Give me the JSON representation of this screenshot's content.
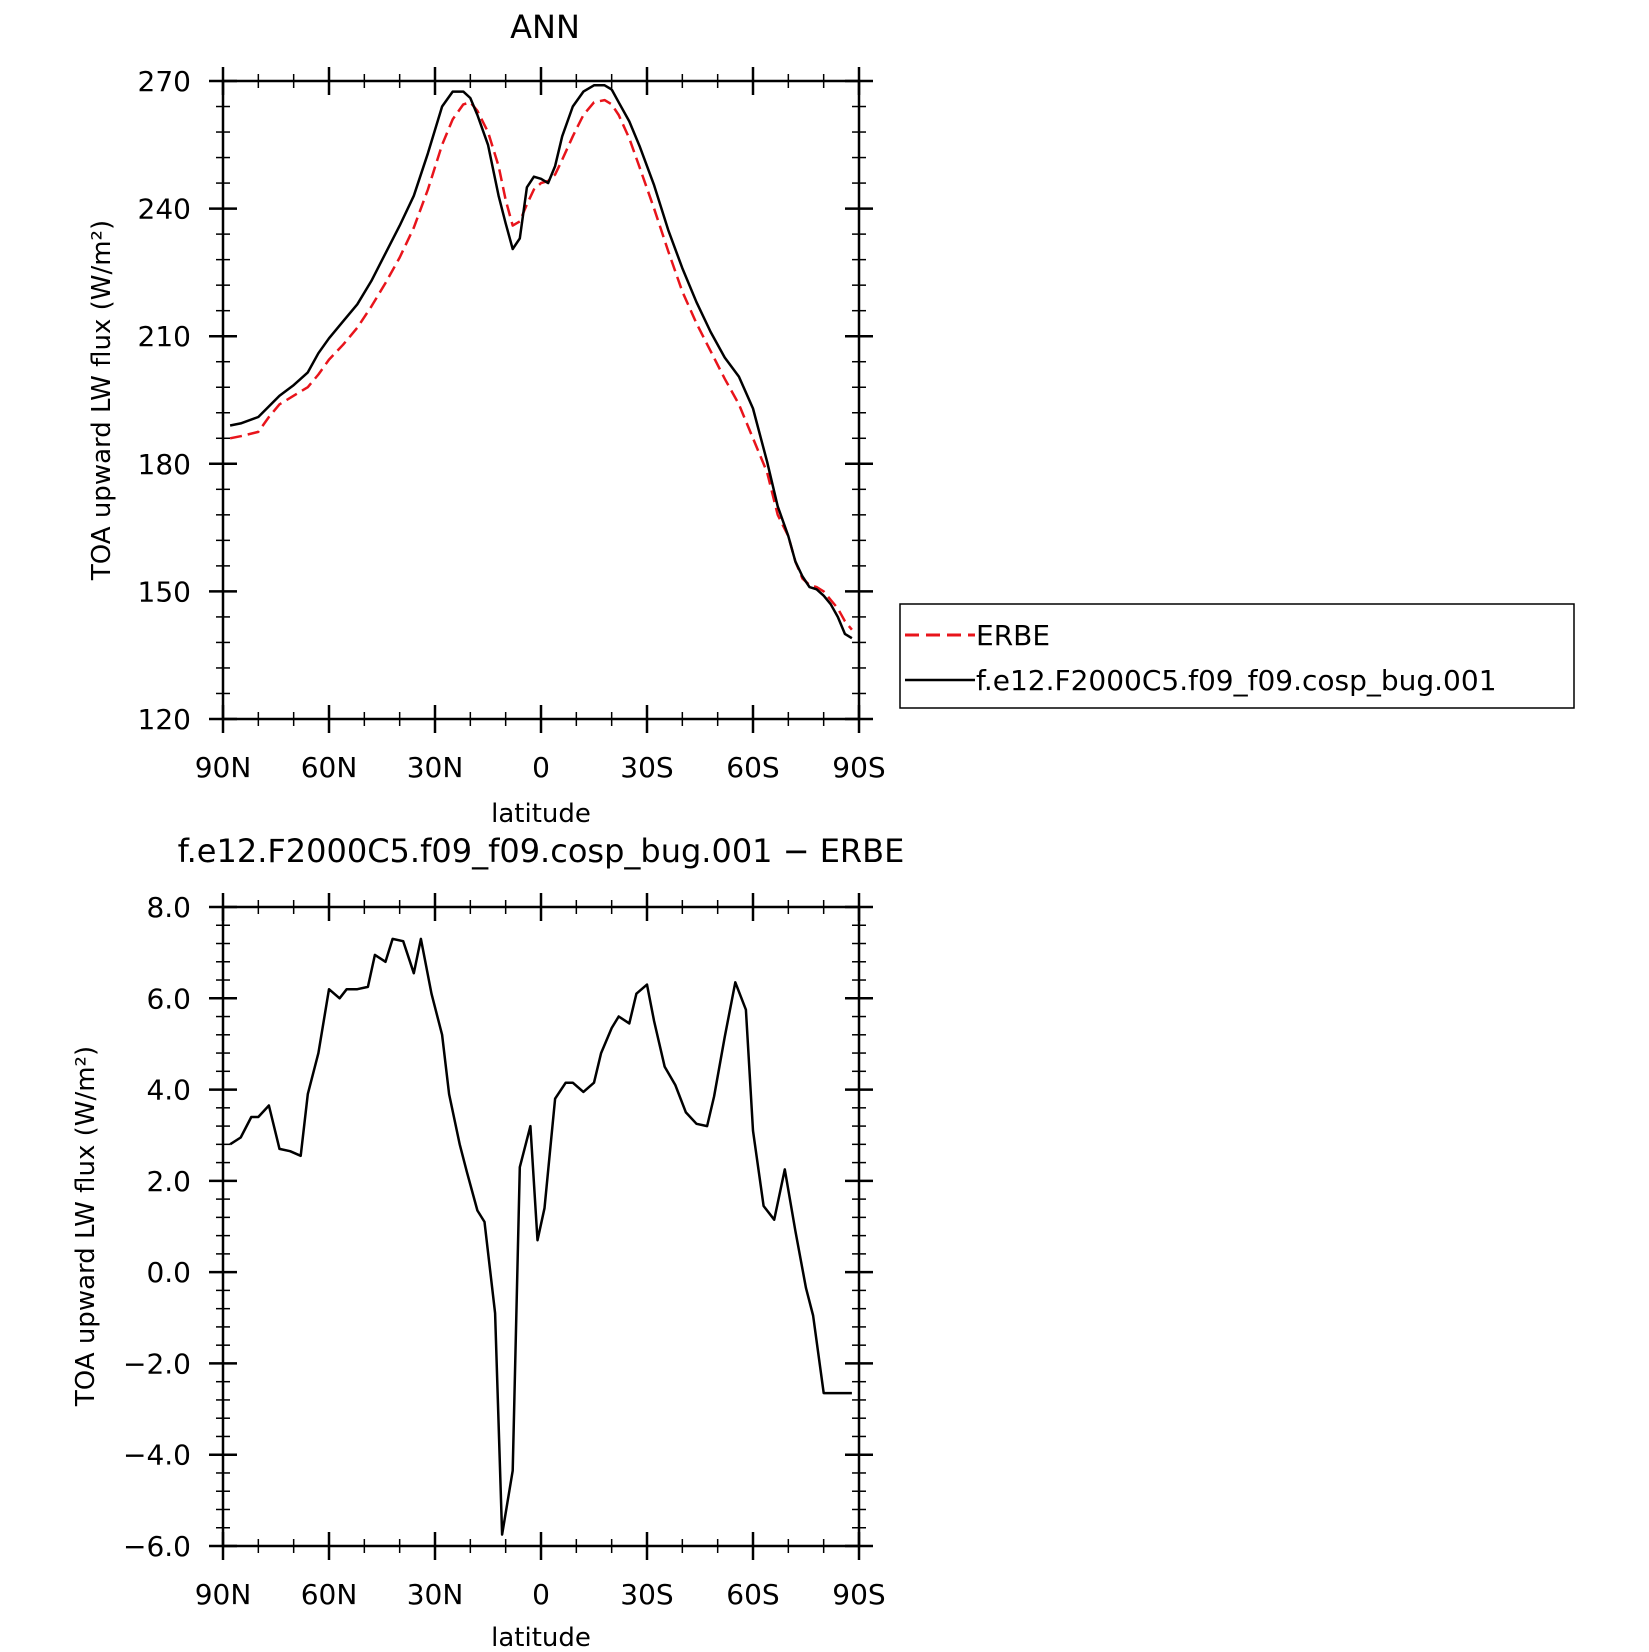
{
  "chart_data": [
    {
      "type": "line",
      "title": "ANN",
      "xlabel": "latitude",
      "ylabel": "TOA upward LW flux (W/m²)",
      "ylim": [
        120,
        270
      ],
      "xlim": [
        90,
        -90
      ],
      "y_ticks": [
        120,
        150,
        180,
        210,
        240,
        270
      ],
      "y_tick_labels": [
        "120",
        "150",
        "180",
        "210",
        "240",
        "270"
      ],
      "x_ticks": [
        90,
        60,
        30,
        0,
        -30,
        -60,
        -90
      ],
      "x_tick_labels": [
        "90N",
        "60N",
        "30N",
        "0",
        "30S",
        "60S",
        "90S"
      ],
      "grid": false,
      "legend": "right",
      "legend_entries": [
        "ERBE",
        "f.e12.F2000C5.f09_f09.cosp_bug.001"
      ],
      "series": [
        {
          "name": "ERBE",
          "color": "#e8141b",
          "dash": "dashed",
          "x": [
            88,
            85,
            80,
            77,
            74,
            70,
            66,
            63,
            60,
            56,
            52,
            48,
            44,
            40,
            36,
            32,
            28,
            25,
            22,
            20,
            18,
            15,
            12,
            10,
            8,
            6,
            4,
            2,
            0,
            -2,
            -4,
            -6,
            -9,
            -12,
            -15,
            -18,
            -20,
            -22,
            -25,
            -28,
            -32,
            -36,
            -40,
            -44,
            -48,
            -52,
            -56,
            -60,
            -64,
            -67,
            -70,
            -72,
            -74,
            -76,
            -78,
            -80,
            -82,
            -84,
            -86,
            -88
          ],
          "y": [
            186,
            186.5,
            187.5,
            191,
            194,
            196,
            198,
            201,
            204.5,
            208,
            212,
            217,
            222.5,
            228.5,
            235.5,
            244.5,
            255,
            261,
            264.5,
            265,
            263,
            258,
            250,
            242,
            236,
            237,
            241,
            244.5,
            246,
            246.5,
            248,
            251.5,
            257,
            262,
            265,
            265.5,
            264.5,
            262,
            256.5,
            249.5,
            240,
            230,
            220.5,
            213,
            206.5,
            200,
            194,
            186,
            178,
            168,
            163,
            157,
            153,
            151.5,
            151,
            150,
            148,
            146,
            143,
            141
          ]
        },
        {
          "name": "f.e12.F2000C5.f09_f09.cosp_bug.001",
          "color": "#000000",
          "dash": "solid",
          "x": [
            88,
            85,
            80,
            77,
            74,
            70,
            66,
            63,
            60,
            56,
            52,
            48,
            44,
            40,
            36,
            32,
            28,
            25,
            22,
            20,
            18,
            15,
            12,
            10,
            8,
            6,
            4,
            2,
            0,
            -2,
            -4,
            -6,
            -9,
            -12,
            -15,
            -18,
            -20,
            -22,
            -25,
            -28,
            -32,
            -36,
            -40,
            -44,
            -48,
            -52,
            -56,
            -60,
            -64,
            -67,
            -70,
            -72,
            -74,
            -76,
            -78,
            -80,
            -82,
            -84,
            -86,
            -88
          ],
          "y": [
            189,
            189.5,
            191,
            193.5,
            196,
            198.5,
            201.5,
            206,
            209.5,
            213.5,
            217.5,
            223,
            229.5,
            236,
            243,
            253,
            264,
            267.5,
            267.5,
            266,
            262,
            255,
            243,
            236.5,
            230.5,
            233,
            245,
            247.5,
            247,
            246,
            250,
            257,
            264,
            267.5,
            269,
            269,
            268,
            265,
            260.5,
            254.5,
            245.5,
            235,
            226,
            218,
            211,
            205,
            200.5,
            193,
            180.5,
            170,
            163,
            157,
            153.5,
            151,
            150.5,
            149,
            147,
            144,
            140,
            139
          ]
        }
      ]
    },
    {
      "type": "line",
      "title": "f.e12.F2000C5.f09_f09.cosp_bug.001 − ERBE",
      "xlabel": "latitude",
      "ylabel": "TOA upward LW flux (W/m²)",
      "ylim": [
        -6.0,
        8.0
      ],
      "xlim": [
        90,
        -90
      ],
      "y_ticks": [
        -6,
        -4,
        -2,
        0,
        2,
        4,
        6,
        8
      ],
      "y_tick_labels": [
        "−6.0",
        "−4.0",
        "−2.0",
        "0.0",
        "2.0",
        "4.0",
        "6.0",
        "8.0"
      ],
      "x_ticks": [
        90,
        60,
        30,
        0,
        -30,
        -60,
        -90
      ],
      "x_tick_labels": [
        "90N",
        "60N",
        "30N",
        "0",
        "30S",
        "60S",
        "90S"
      ],
      "grid": false,
      "series": [
        {
          "color": "#000000",
          "dash": "solid",
          "x": [
            88,
            85,
            82,
            80,
            77,
            74,
            71,
            68,
            66,
            63,
            60,
            57,
            55,
            52,
            49,
            47,
            44,
            42,
            39,
            36,
            34,
            31,
            28,
            26,
            23,
            21,
            18,
            16,
            13,
            11,
            8,
            6,
            3,
            1,
            -1,
            -4,
            -7,
            -9,
            -12,
            -15,
            -17,
            -20,
            -22,
            -25,
            -27,
            -30,
            -32,
            -35,
            -38,
            -41,
            -44,
            -47,
            -49,
            -52,
            -55,
            -58,
            -60,
            -63,
            -66,
            -69,
            -72,
            -75,
            -77,
            -80,
            -82,
            -85,
            -88
          ],
          "y": [
            2.8,
            2.95,
            3.4,
            3.4,
            3.65,
            2.7,
            2.65,
            2.55,
            3.9,
            4.8,
            6.2,
            6.0,
            6.2,
            6.2,
            6.25,
            6.95,
            6.8,
            7.3,
            7.25,
            6.55,
            7.3,
            6.1,
            5.2,
            3.9,
            2.8,
            2.2,
            1.35,
            1.1,
            -0.9,
            -5.75,
            -4.35,
            2.3,
            3.2,
            0.7,
            1.4,
            3.8,
            4.15,
            4.15,
            3.95,
            4.15,
            4.8,
            5.35,
            5.6,
            5.45,
            6.1,
            6.3,
            5.5,
            4.5,
            4.1,
            3.5,
            3.25,
            3.2,
            3.85,
            5.15,
            6.35,
            5.75,
            3.1,
            1.45,
            1.15,
            2.25,
            0.9,
            -0.35,
            -0.95,
            -2.65,
            -2.65,
            -2.65,
            -2.65
          ]
        }
      ]
    }
  ]
}
